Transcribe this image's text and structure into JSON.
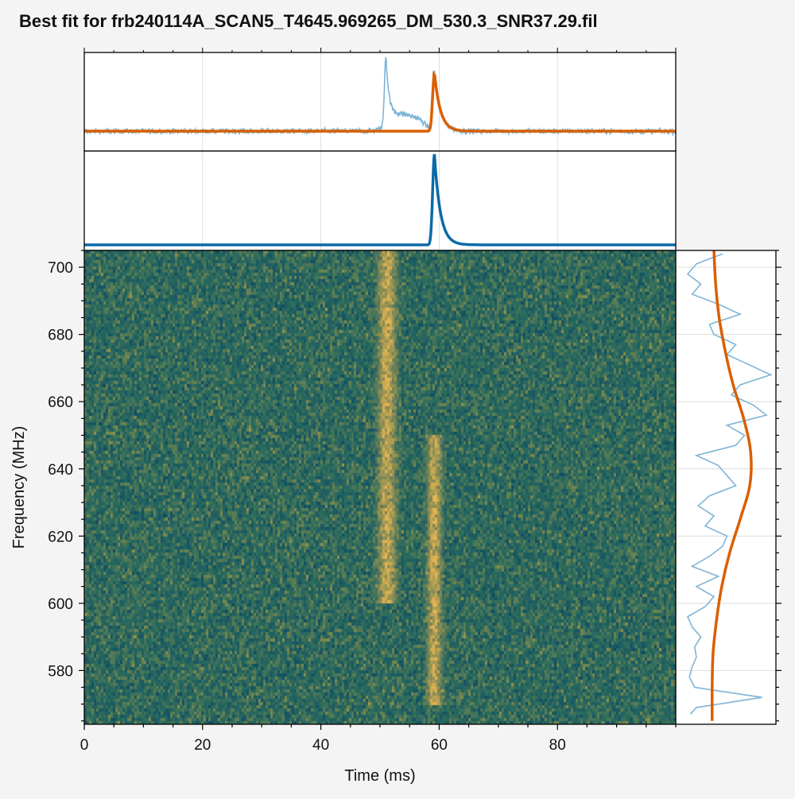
{
  "colors": {
    "background": "#f4f4f4",
    "data_line": "#7fb4d6",
    "model_line": "#d95f02",
    "component_line": "#0a6aa8",
    "grid": "#dddddd",
    "waterfall_base": "#2a6a5e",
    "waterfall_low": "#0f4d63",
    "waterfall_high": "#b9a040",
    "burst": "#e6b450"
  },
  "chart_data": {
    "type": "line",
    "title": "Best fit for frb240114A_SCAN5_T4645.969265_DM_530.3_SNR37.29.fil",
    "xlabel": "Time (ms)",
    "ylabel": "Frequency (MHz)",
    "xlim": [
      0,
      100
    ],
    "ylim": [
      564,
      705
    ],
    "x_ticks": [
      0,
      20,
      40,
      60,
      80
    ],
    "y_ticks": [
      580,
      600,
      620,
      640,
      660,
      680,
      700
    ],
    "grid": true,
    "time_profile": {
      "baseline": 0,
      "peak_observed": 1.0,
      "peak_observed_time_ms": 51,
      "model_peak": 0.8,
      "model_peak_time_ms": 59.2,
      "model_scatter_ms": 1.0
    },
    "model_component": {
      "peak_time_ms": 59.2,
      "peak": 1.0,
      "rise_ms": 0.3,
      "decay_ms": 1.0
    },
    "waterfall": {
      "bursts": [
        {
          "time_ms": 51.2,
          "freq_low_mhz": 600,
          "freq_high_mhz": 705,
          "width_ms": 1.0,
          "strength": 1.0
        },
        {
          "time_ms": 59.2,
          "freq_low_mhz": 570,
          "freq_high_mhz": 650,
          "width_ms": 0.8,
          "strength": 1.0
        }
      ]
    },
    "spectrum": {
      "freq_mhz": [
        567,
        569,
        572,
        575,
        578,
        581,
        584,
        587,
        590,
        593,
        596,
        599,
        602,
        605,
        608,
        611,
        614,
        617,
        620,
        623,
        626,
        629,
        632,
        635,
        638,
        641,
        644,
        647,
        650,
        653,
        656,
        659,
        662,
        665,
        668,
        671,
        674,
        677,
        680,
        683,
        686,
        689,
        692,
        695,
        698,
        701,
        704
      ],
      "observed": [
        0.03,
        0.1,
        0.85,
        0.08,
        0.02,
        0.05,
        0.1,
        0.08,
        0.15,
        0.05,
        0.0,
        0.2,
        0.3,
        0.1,
        0.35,
        0.05,
        0.25,
        0.4,
        0.45,
        0.2,
        0.3,
        0.12,
        0.25,
        0.55,
        0.45,
        0.35,
        0.1,
        0.55,
        0.65,
        0.45,
        0.9,
        0.75,
        0.5,
        0.6,
        0.95,
        0.7,
        0.45,
        0.55,
        0.3,
        0.25,
        0.6,
        0.35,
        0.05,
        0.15,
        0.0,
        0.1,
        0.4
      ],
      "model_freq_mhz": [
        565,
        575,
        585,
        595,
        605,
        615,
        625,
        635,
        645,
        655,
        665,
        675,
        685,
        695,
        705
      ],
      "model": [
        0.28,
        0.28,
        0.29,
        0.33,
        0.39,
        0.48,
        0.6,
        0.71,
        0.72,
        0.64,
        0.52,
        0.43,
        0.36,
        0.32,
        0.3
      ]
    }
  }
}
